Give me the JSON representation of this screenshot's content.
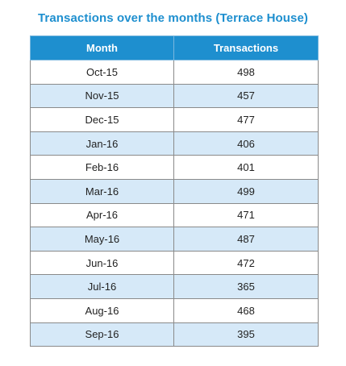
{
  "chart_data": {
    "type": "table",
    "title": "Transactions over the months (Terrace House)",
    "columns": [
      "Month",
      "Transactions"
    ],
    "categories": [
      "Oct-15",
      "Nov-15",
      "Dec-15",
      "Jan-16",
      "Feb-16",
      "Mar-16",
      "Apr-16",
      "May-16",
      "Jun-16",
      "Jul-16",
      "Aug-16",
      "Sep-16"
    ],
    "values": [
      498,
      457,
      477,
      406,
      401,
      499,
      471,
      487,
      472,
      365,
      468,
      395
    ]
  },
  "colors": {
    "title": "#1e8fcf",
    "header_bg": "#1e8fcf",
    "stripe": "#d6e9f8"
  }
}
